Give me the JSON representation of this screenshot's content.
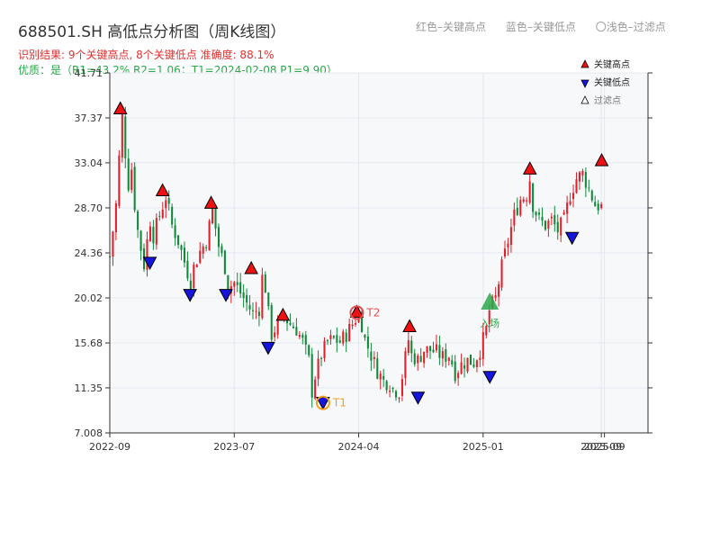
{
  "title": "688501.SH 高低点分析图（周K线图）",
  "subtitle_line1": "识别结果: 9个关键高点, 8个关键低点  准确度: 88.1%",
  "subtitle_line2": "优质：是（R1=43.2%  R2=1.06；T1=2024-02-08 P1=9.90）",
  "top_legend": {
    "red": "红色–关键高点",
    "blue": "蓝色–关键低点",
    "light": "〇浅色–过滤点"
  },
  "colors": {
    "up": "#e0202a",
    "down": "#12893a",
    "high_marker": "#ee1111",
    "low_marker": "#1515dd",
    "t1_circle": "#f0a020",
    "t2_circle": "#e05050",
    "entry": "#2aa84a",
    "grid": "#e4e8ee",
    "plot_bg": "#f6f8fa",
    "axis": "#333333"
  },
  "chart_data": {
    "type": "candlestick",
    "ylim": [
      7.008,
      41.71
    ],
    "y_ticks": [
      "7.008",
      "11.35",
      "15.68",
      "20.02",
      "24.36",
      "28.70",
      "33.04",
      "37.37",
      "41.71"
    ],
    "xlim": [
      0,
      173
    ],
    "x_ticks": [
      {
        "x": 0,
        "label": "2022-09"
      },
      {
        "x": 40,
        "label": "2023-07"
      },
      {
        "x": 80,
        "label": "2024-04"
      },
      {
        "x": 120,
        "label": "2025-01"
      },
      {
        "x": 158,
        "label": "2025-09"
      },
      {
        "x": 159,
        "label": "2025-09"
      }
    ],
    "anchors": [
      [
        0,
        24.0
      ],
      [
        1,
        26.5
      ],
      [
        2,
        29.0
      ],
      [
        3,
        33.5
      ],
      [
        4,
        37.5
      ],
      [
        5,
        34.0
      ],
      [
        6,
        31.0
      ],
      [
        7,
        32.5
      ],
      [
        8,
        29.0
      ],
      [
        9,
        26.5
      ],
      [
        10,
        24.8
      ],
      [
        11,
        23.2
      ],
      [
        12,
        25.5
      ],
      [
        13,
        27.5
      ],
      [
        14,
        26.0
      ],
      [
        16,
        28.0
      ],
      [
        18,
        29.8
      ],
      [
        20,
        27.0
      ],
      [
        22,
        25.5
      ],
      [
        24,
        23.5
      ],
      [
        26,
        21.5
      ],
      [
        27,
        23.0
      ],
      [
        29,
        24.5
      ],
      [
        31,
        25.5
      ],
      [
        33,
        28.5
      ],
      [
        35,
        25.0
      ],
      [
        37,
        23.0
      ],
      [
        38,
        21.0
      ],
      [
        40,
        21.5
      ],
      [
        42,
        20.5
      ],
      [
        44,
        19.5
      ],
      [
        46,
        18.5
      ],
      [
        48,
        19.0
      ],
      [
        49,
        22.0
      ],
      [
        50,
        21.0
      ],
      [
        51,
        18.5
      ],
      [
        52,
        16.5
      ],
      [
        54,
        17.5
      ],
      [
        56,
        18.2
      ],
      [
        58,
        17.5
      ],
      [
        60,
        17.0
      ],
      [
        62,
        15.8
      ],
      [
        64,
        14.0
      ],
      [
        65,
        11.0
      ],
      [
        66,
        12.5
      ],
      [
        68,
        14.5
      ],
      [
        70,
        15.8
      ],
      [
        72,
        16.0
      ],
      [
        74,
        15.8
      ],
      [
        76,
        16.5
      ],
      [
        78,
        17.5
      ],
      [
        80,
        18.5
      ],
      [
        81,
        17.5
      ],
      [
        82,
        16.0
      ],
      [
        84,
        14.5
      ],
      [
        86,
        13.0
      ],
      [
        88,
        12.0
      ],
      [
        90,
        11.8
      ],
      [
        91,
        11.2
      ],
      [
        93,
        11.0
      ],
      [
        94,
        12.5
      ],
      [
        96,
        16.0
      ],
      [
        97,
        14.5
      ],
      [
        99,
        14.0
      ],
      [
        101,
        15.0
      ],
      [
        103,
        15.0
      ],
      [
        105,
        14.8
      ],
      [
        107,
        14.3
      ],
      [
        109,
        14.5
      ],
      [
        110,
        13.8
      ],
      [
        111,
        12.8
      ],
      [
        113,
        13.6
      ],
      [
        115,
        14.0
      ],
      [
        117,
        13.8
      ],
      [
        119,
        15.0
      ],
      [
        121,
        17.0
      ],
      [
        122,
        18.8
      ],
      [
        124,
        20.0
      ],
      [
        126,
        23.0
      ],
      [
        128,
        25.5
      ],
      [
        130,
        28.0
      ],
      [
        132,
        29.5
      ],
      [
        134,
        30.0
      ],
      [
        135,
        31.5
      ],
      [
        136,
        29.0
      ],
      [
        138,
        27.5
      ],
      [
        140,
        27.0
      ],
      [
        142,
        27.5
      ],
      [
        144,
        26.5
      ],
      [
        146,
        27.5
      ],
      [
        148,
        30.0
      ],
      [
        150,
        31.5
      ],
      [
        152,
        32.0
      ],
      [
        154,
        30.5
      ],
      [
        156,
        29.0
      ],
      [
        158,
        28.8
      ]
    ],
    "key_highs": [
      {
        "x": 5,
        "value": 38.2
      },
      {
        "x": 25,
        "value": 30.3
      },
      {
        "x": 48,
        "value": 29.1
      },
      {
        "x": 67,
        "value": 22.8
      },
      {
        "x": 82,
        "value": 18.3
      },
      {
        "x": 117,
        "value": 18.6
      },
      {
        "x": 142,
        "value": 17.2
      },
      {
        "x": 199,
        "value": 32.4
      },
      {
        "x": 233,
        "value": 33.2
      }
    ],
    "key_lows": [
      {
        "x": 19,
        "value": 23.5
      },
      {
        "x": 38,
        "value": 20.4
      },
      {
        "x": 55,
        "value": 20.4
      },
      {
        "x": 75,
        "value": 15.3
      },
      {
        "x": 101,
        "value": 10.0
      },
      {
        "x": 146,
        "value": 10.5
      },
      {
        "x": 180,
        "value": 12.5
      },
      {
        "x": 219,
        "value": 25.9
      }
    ],
    "t1": {
      "x": 101,
      "value": 9.9,
      "label": "T1"
    },
    "t2": {
      "x": 117,
      "value": 18.6,
      "label": "T2"
    },
    "entry": {
      "x": 180,
      "value": 19.5,
      "label": "入场"
    },
    "legend": {
      "high": "关键高点",
      "low": "关键低点",
      "filtered": "过滤点",
      "placement": "top-right"
    },
    "grid": true
  }
}
